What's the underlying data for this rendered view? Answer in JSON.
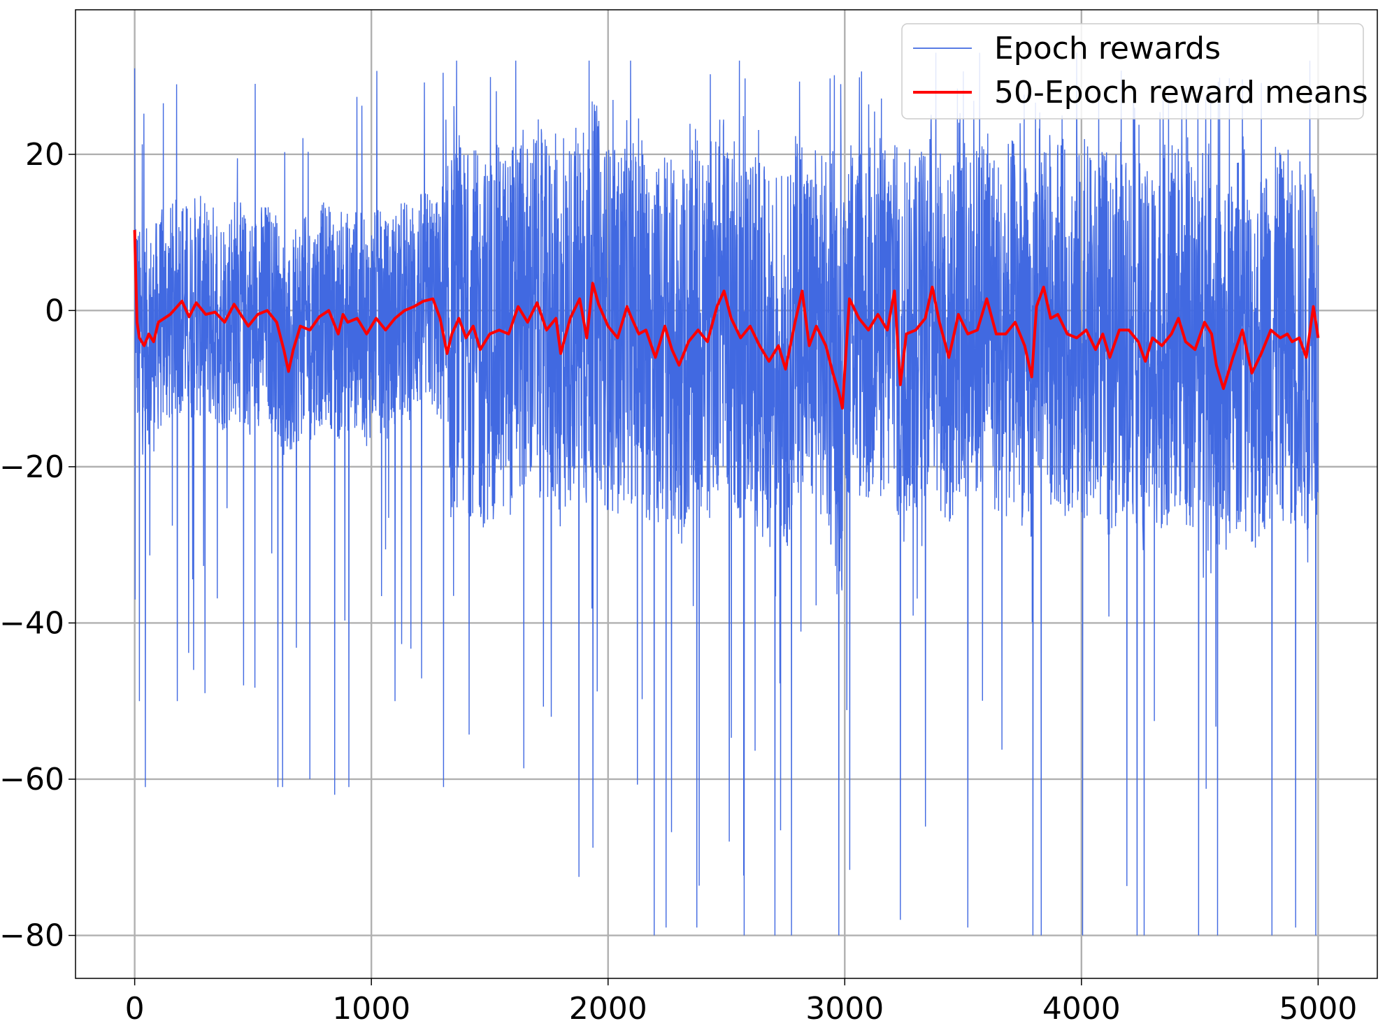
{
  "chart_data": {
    "type": "line",
    "title": "",
    "xlabel": "",
    "ylabel": "",
    "xlim": [
      -250,
      5250
    ],
    "ylim": [
      -85.5,
      38.5
    ],
    "xticks": [
      0,
      1000,
      2000,
      3000,
      4000,
      5000
    ],
    "xtick_labels": [
      "0",
      "1000",
      "2000",
      "3000",
      "4000",
      "5000"
    ],
    "yticks": [
      20,
      0,
      -20,
      -40,
      -60,
      -80
    ],
    "ytick_labels": [
      "20",
      "0",
      "−20",
      "−40",
      "−60",
      "−80"
    ],
    "grid": true,
    "legend_position": "top-right",
    "series": [
      {
        "name": "Epoch rewards",
        "color": "#4169e1",
        "style": "thin line, noisy per-epoch rewards oscillating roughly between -30 and +25 with frequent spikes down to -80 and up to about 32",
        "x_range": [
          0,
          5000
        ],
        "key_points": [
          [
            0,
            31
          ],
          [
            2,
            -37
          ],
          [
            20,
            -50
          ],
          [
            45,
            -61
          ],
          [
            180,
            -50
          ],
          [
            460,
            -48
          ],
          [
            605,
            -61
          ],
          [
            625,
            -61
          ],
          [
            740,
            -60
          ],
          [
            845,
            -62
          ],
          [
            905,
            -61
          ],
          [
            1100,
            -50
          ],
          [
            1305,
            -61
          ],
          [
            1760,
            -52
          ],
          [
            2095,
            -79
          ],
          [
            2195,
            -80
          ],
          [
            2245,
            -79
          ],
          [
            2375,
            -79
          ],
          [
            2575,
            -80
          ],
          [
            2705,
            -80
          ],
          [
            2775,
            -80
          ],
          [
            2975,
            -80
          ],
          [
            3235,
            -78
          ],
          [
            3520,
            -79
          ],
          [
            3795,
            -80
          ],
          [
            3830,
            -80
          ],
          [
            4005,
            -80
          ],
          [
            4235,
            -80
          ],
          [
            4265,
            -80
          ],
          [
            4495,
            -80
          ],
          [
            4575,
            -80
          ],
          [
            4805,
            -80
          ],
          [
            4905,
            -79
          ],
          [
            4990,
            -80
          ],
          [
            1360,
            32
          ],
          [
            1610,
            32
          ],
          [
            1920,
            32
          ],
          [
            2095,
            32
          ],
          [
            2555,
            32
          ],
          [
            3385,
            33
          ],
          [
            3570,
            33
          ],
          [
            3980,
            33
          ],
          [
            4965,
            32
          ]
        ]
      },
      {
        "name": "50-Epoch reward means",
        "color": "#ff0000",
        "style": "thick line, moving average",
        "x": [
          0,
          5,
          10,
          20,
          40,
          60,
          80,
          100,
          150,
          200,
          230,
          260,
          300,
          340,
          380,
          420,
          450,
          480,
          520,
          560,
          600,
          630,
          650,
          670,
          700,
          740,
          780,
          820,
          860,
          880,
          900,
          940,
          980,
          1020,
          1060,
          1100,
          1140,
          1180,
          1220,
          1260,
          1290,
          1320,
          1340,
          1370,
          1400,
          1430,
          1460,
          1500,
          1540,
          1580,
          1620,
          1660,
          1700,
          1740,
          1780,
          1800,
          1840,
          1880,
          1910,
          1935,
          1960,
          2000,
          2040,
          2080,
          2100,
          2130,
          2160,
          2200,
          2240,
          2270,
          2300,
          2340,
          2380,
          2420,
          2460,
          2490,
          2520,
          2560,
          2600,
          2640,
          2680,
          2720,
          2750,
          2790,
          2820,
          2850,
          2880,
          2920,
          2950,
          2975,
          2990,
          3020,
          3060,
          3100,
          3140,
          3180,
          3210,
          3235,
          3260,
          3300,
          3340,
          3370,
          3400,
          3440,
          3480,
          3520,
          3560,
          3600,
          3640,
          3680,
          3720,
          3760,
          3790,
          3810,
          3840,
          3870,
          3900,
          3940,
          3980,
          4020,
          4060,
          4090,
          4120,
          4160,
          4200,
          4240,
          4270,
          4300,
          4340,
          4380,
          4410,
          4440,
          4480,
          4520,
          4550,
          4570,
          4600,
          4640,
          4680,
          4720,
          4760,
          4800,
          4840,
          4870,
          4890,
          4920,
          4950,
          4980,
          5000
        ],
        "values": [
          10.3,
          4.0,
          -1.5,
          -3.5,
          -4.5,
          -3.0,
          -4.0,
          -1.5,
          -0.5,
          1.2,
          -0.8,
          1.0,
          -0.5,
          -0.2,
          -1.5,
          0.8,
          -0.6,
          -2.0,
          -0.5,
          0.0,
          -1.5,
          -5.0,
          -7.8,
          -5.0,
          -2.0,
          -2.5,
          -0.8,
          0.0,
          -3.0,
          -0.5,
          -1.5,
          -1.0,
          -3.0,
          -1.0,
          -2.5,
          -1.0,
          0.0,
          0.5,
          1.2,
          1.5,
          -1.0,
          -5.5,
          -3.0,
          -1.0,
          -3.5,
          -2.0,
          -5.0,
          -3.0,
          -2.5,
          -3.0,
          0.5,
          -1.5,
          1.0,
          -2.5,
          -1.0,
          -5.5,
          -1.0,
          1.5,
          -3.5,
          3.5,
          0.8,
          -2.0,
          -3.5,
          0.5,
          -1.0,
          -3.0,
          -2.5,
          -6.0,
          -2.0,
          -5.0,
          -7.0,
          -4.0,
          -2.5,
          -4.0,
          0.5,
          2.5,
          -1.0,
          -3.5,
          -2.0,
          -4.5,
          -6.5,
          -4.5,
          -7.5,
          -1.5,
          2.5,
          -4.5,
          -2.0,
          -4.5,
          -8.0,
          -10.5,
          -12.5,
          1.5,
          -1.0,
          -2.5,
          -0.5,
          -2.5,
          2.5,
          -9.5,
          -3.0,
          -2.5,
          -1.0,
          3.0,
          -1.5,
          -6.0,
          -0.5,
          -3.0,
          -2.5,
          1.5,
          -3.0,
          -3.0,
          -1.5,
          -4.5,
          -8.5,
          0.5,
          3.0,
          -1.0,
          -0.5,
          -3.0,
          -3.5,
          -2.5,
          -5.0,
          -3.0,
          -6.0,
          -2.5,
          -2.5,
          -4.0,
          -6.5,
          -3.5,
          -4.5,
          -3.0,
          -1.0,
          -4.0,
          -5.0,
          -1.5,
          -3.0,
          -7.0,
          -10.0,
          -6.0,
          -2.5,
          -8.0,
          -5.5,
          -2.5,
          -3.5,
          -3.0,
          -4.0,
          -3.5,
          -6.0,
          0.5,
          -3.5
        ]
      }
    ]
  }
}
